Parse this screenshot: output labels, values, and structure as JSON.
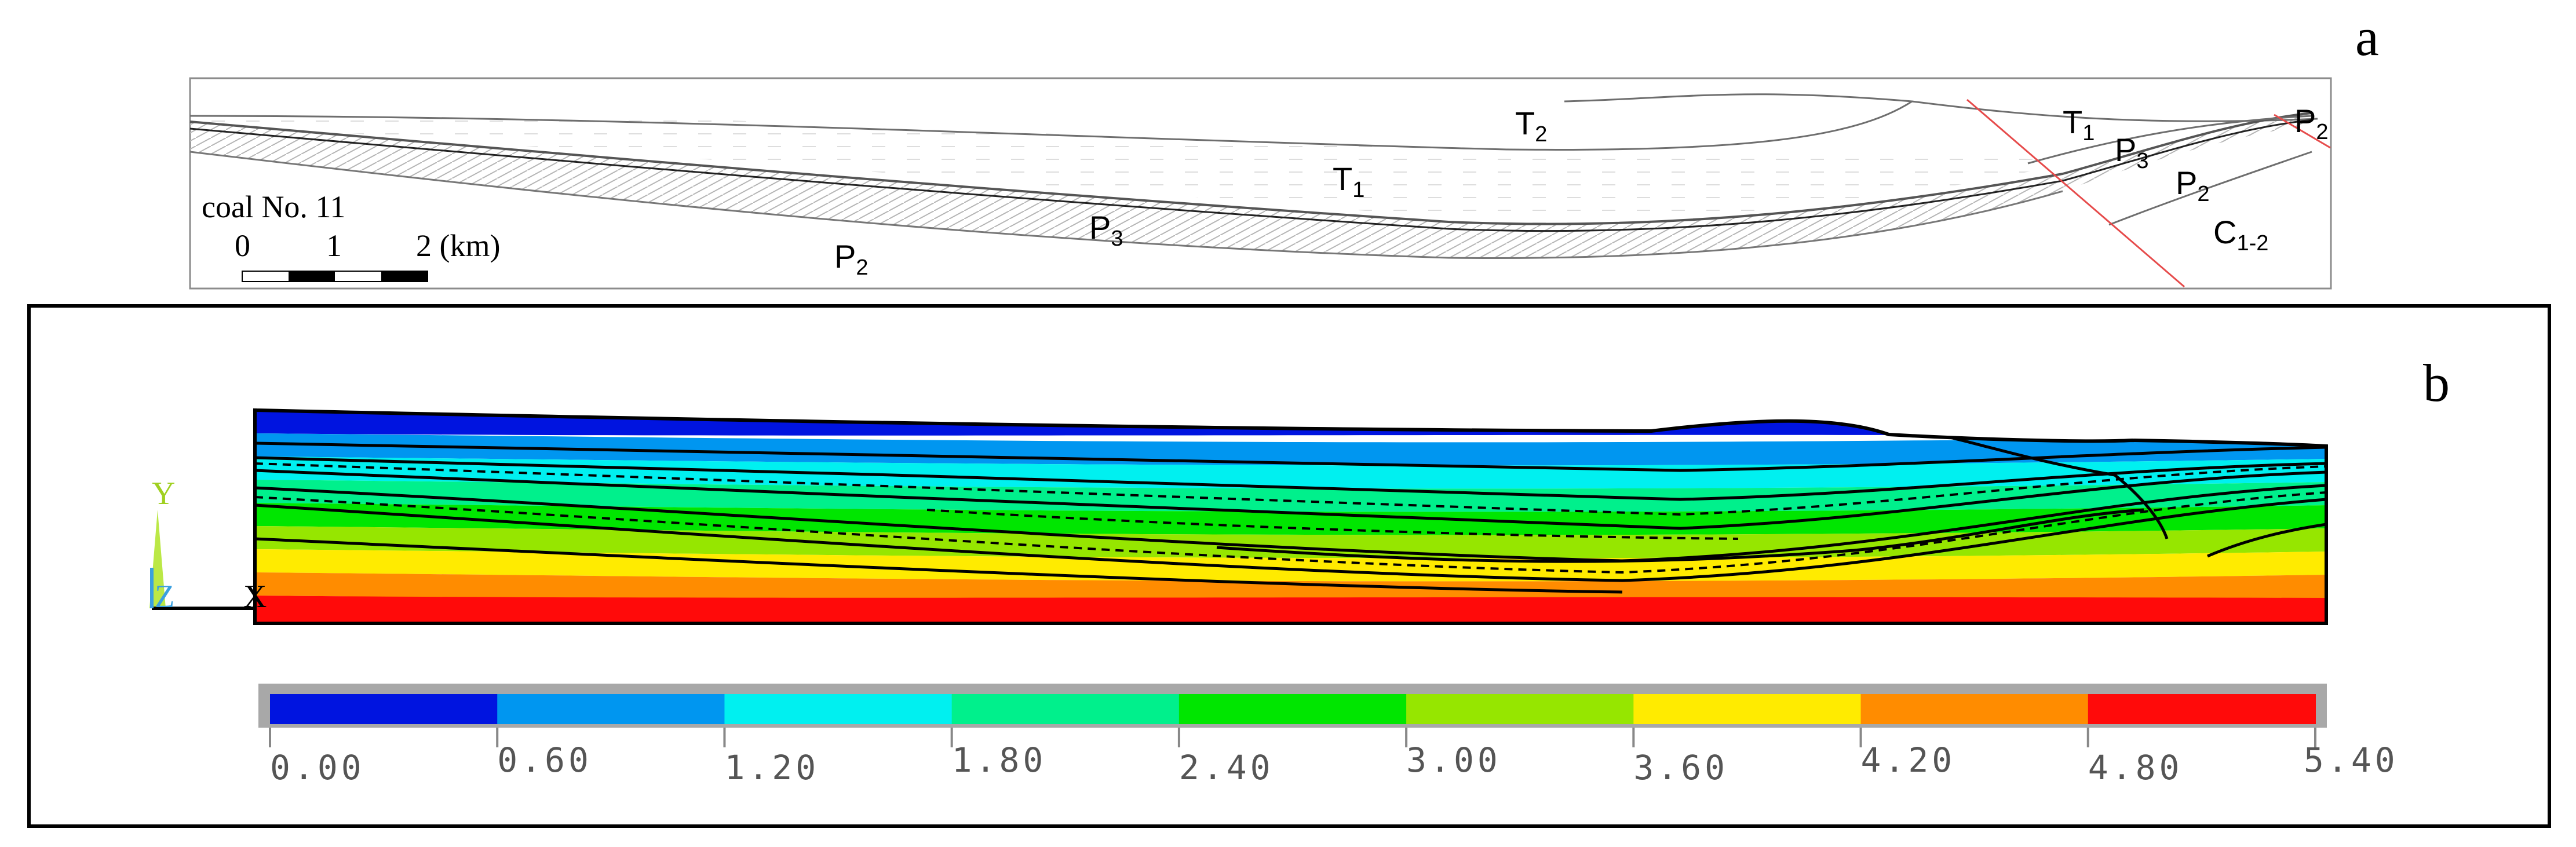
{
  "panel_a": {
    "letter": "a",
    "legend": {
      "coal": "coal No. 11",
      "ticks": [
        "0",
        "1",
        "2 (km)"
      ]
    },
    "strata": [
      {
        "id": "T2-top",
        "base": "T",
        "sub": "2"
      },
      {
        "id": "T1-mid",
        "base": "T",
        "sub": "1"
      },
      {
        "id": "P3-mid",
        "base": "P",
        "sub": "3"
      },
      {
        "id": "P2-left",
        "base": "P",
        "sub": "2"
      },
      {
        "id": "T1-right",
        "base": "T",
        "sub": "1"
      },
      {
        "id": "P3-right",
        "base": "P",
        "sub": "3"
      },
      {
        "id": "P2-right",
        "base": "P",
        "sub": "2"
      },
      {
        "id": "P2-far",
        "base": "P",
        "sub": "2"
      },
      {
        "id": "C12",
        "base": "C",
        "sub": "1-2"
      }
    ]
  },
  "panel_b": {
    "letter": "b",
    "axes": {
      "y": "Y",
      "z": "Z",
      "x": "X"
    },
    "colors": [
      "#0014e0",
      "#0096f0",
      "#00f0f0",
      "#00f08c",
      "#00e600",
      "#96e600",
      "#ffeb00",
      "#ff8c00",
      "#ff0a0a"
    ],
    "colorbar_labels": [
      "0.00",
      "0.60",
      "1.20",
      "1.80",
      "2.40",
      "3.00",
      "3.60",
      "4.20",
      "4.80",
      "5.40"
    ]
  }
}
